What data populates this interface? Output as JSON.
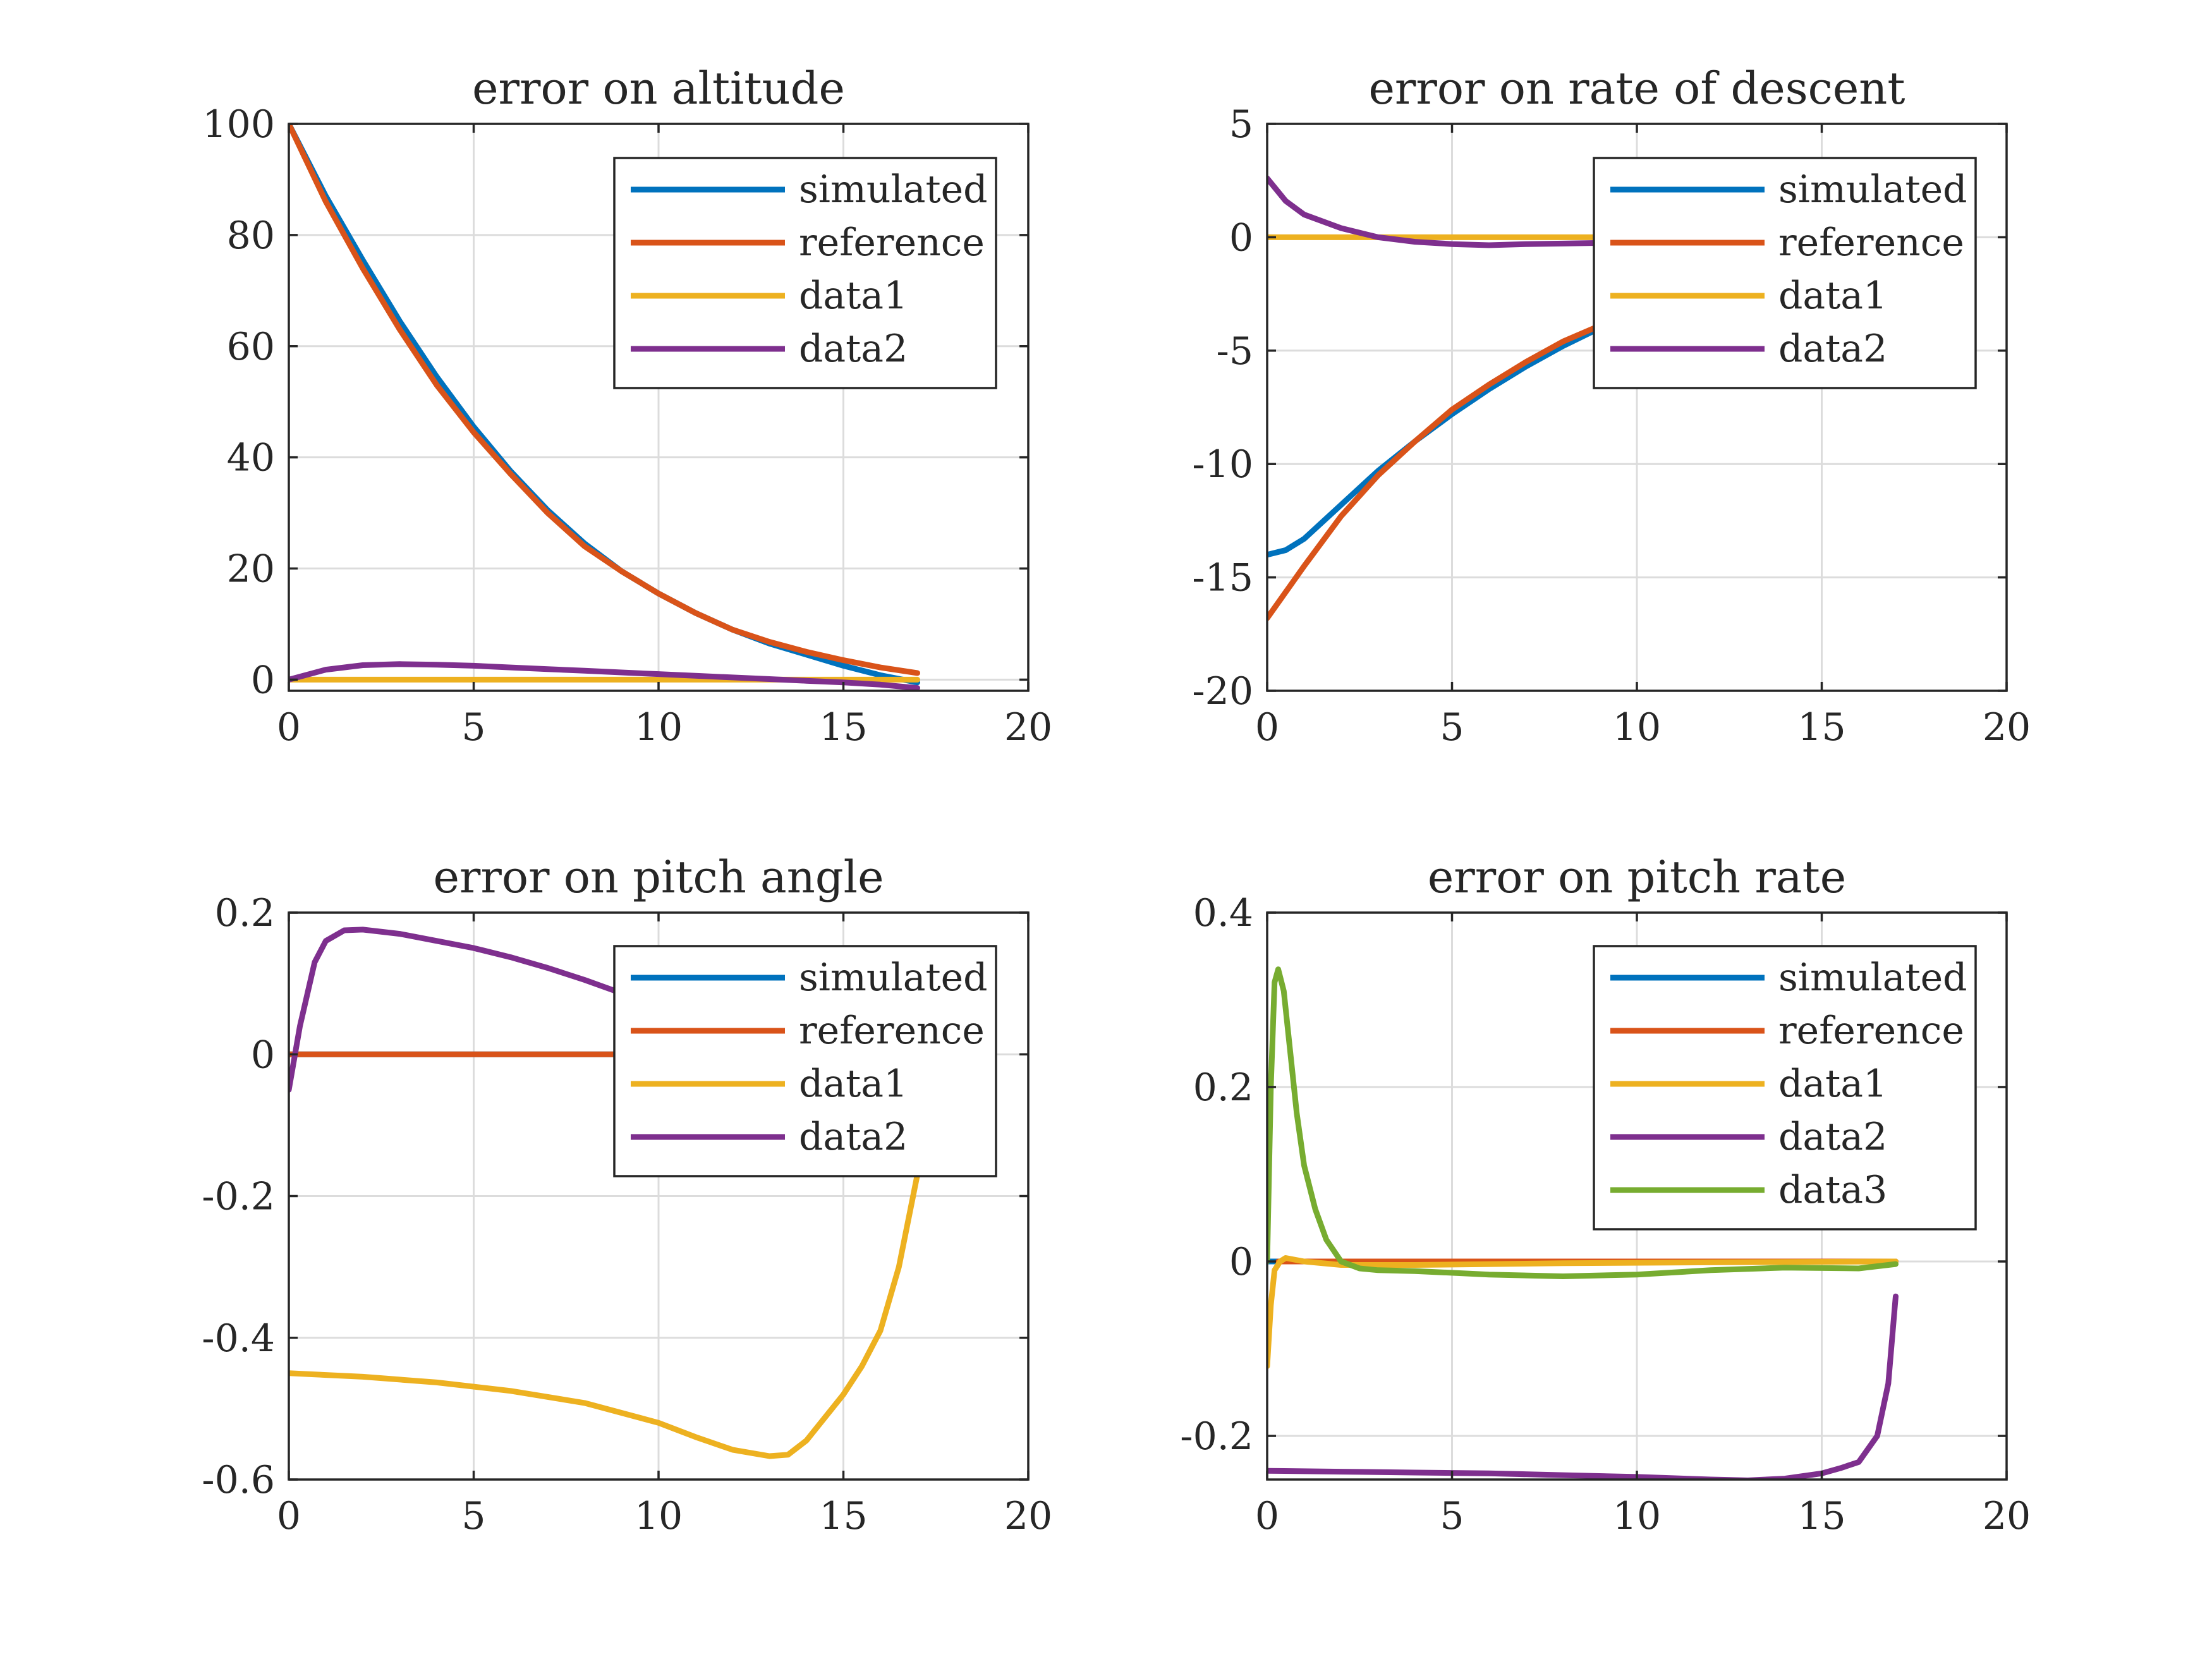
{
  "figure": {
    "background": "#ffffff"
  },
  "chart_data": [
    {
      "type": "line",
      "title": "error on altitude",
      "xlabel": "",
      "ylabel": "",
      "xlim": [
        0,
        20
      ],
      "ylim": [
        -2,
        100
      ],
      "xticks": [
        0,
        5,
        10,
        15,
        20
      ],
      "yticks": [
        0,
        20,
        40,
        60,
        80,
        100
      ],
      "xtick_labels": [
        "0",
        "5",
        "10",
        "15",
        "20"
      ],
      "ytick_labels": [
        "0",
        "20",
        "40",
        "60",
        "80",
        "100"
      ],
      "grid": true,
      "legend_position": "top-right",
      "series": [
        {
          "name": "simulated",
          "color": "#0072BD",
          "x": [
            0,
            1,
            2,
            3,
            4,
            5,
            6,
            7,
            8,
            9,
            10,
            11,
            12,
            13,
            14,
            15,
            16,
            17
          ],
          "y": [
            100,
            87,
            75.5,
            64.5,
            54.5,
            45.5,
            37.5,
            30.5,
            24.5,
            19.5,
            15.5,
            12,
            9,
            6.5,
            4.5,
            2.5,
            0.8,
            -0.5
          ]
        },
        {
          "name": "reference",
          "color": "#D95319",
          "x": [
            0,
            1,
            2,
            3,
            4,
            5,
            6,
            7,
            8,
            9,
            10,
            11,
            12,
            13,
            14,
            15,
            16,
            17
          ],
          "y": [
            100,
            86,
            74,
            63,
            53,
            44.5,
            37,
            30,
            24,
            19.5,
            15.5,
            12,
            9,
            6.8,
            5,
            3.5,
            2.2,
            1.2
          ]
        },
        {
          "name": "data1",
          "color": "#EDB120",
          "x": [
            0,
            17
          ],
          "y": [
            0,
            0
          ]
        },
        {
          "name": "data2",
          "color": "#7E2F8E",
          "x": [
            0,
            1,
            2,
            3,
            4,
            5,
            6,
            7,
            8,
            9,
            10,
            11,
            12,
            13,
            14,
            15,
            16,
            17
          ],
          "y": [
            0,
            1.8,
            2.6,
            2.8,
            2.7,
            2.5,
            2.2,
            1.9,
            1.6,
            1.3,
            1.0,
            0.7,
            0.4,
            0.1,
            -0.2,
            -0.5,
            -0.9,
            -1.5
          ]
        }
      ]
    },
    {
      "type": "line",
      "title": "error on rate of descent",
      "xlabel": "",
      "ylabel": "",
      "xlim": [
        0,
        20
      ],
      "ylim": [
        -20,
        5
      ],
      "xticks": [
        0,
        5,
        10,
        15,
        20
      ],
      "yticks": [
        -20,
        -15,
        -10,
        -5,
        0,
        5
      ],
      "xtick_labels": [
        "0",
        "5",
        "10",
        "15",
        "20"
      ],
      "ytick_labels": [
        "-20",
        "-15",
        "-10",
        "-5",
        "0",
        "5"
      ],
      "grid": true,
      "legend_position": "top-right",
      "series": [
        {
          "name": "simulated",
          "color": "#0072BD",
          "x": [
            0,
            0.5,
            1,
            2,
            3,
            4,
            5,
            6,
            7,
            8,
            9
          ],
          "y": [
            -14,
            -13.8,
            -13.3,
            -11.8,
            -10.3,
            -9.0,
            -7.8,
            -6.7,
            -5.7,
            -4.8,
            -4.0
          ]
        },
        {
          "name": "reference",
          "color": "#D95319",
          "x": [
            0,
            1,
            2,
            3,
            4,
            5,
            6,
            7,
            8,
            9
          ],
          "y": [
            -16.8,
            -14.5,
            -12.3,
            -10.5,
            -9.0,
            -7.6,
            -6.5,
            -5.5,
            -4.6,
            -3.9
          ]
        },
        {
          "name": "data1",
          "color": "#EDB120",
          "x": [
            0,
            9
          ],
          "y": [
            0,
            0
          ]
        },
        {
          "name": "data2",
          "color": "#7E2F8E",
          "x": [
            0,
            0.5,
            1,
            2,
            3,
            4,
            5,
            6,
            7,
            8,
            9
          ],
          "y": [
            2.6,
            1.6,
            1.0,
            0.4,
            0.0,
            -0.2,
            -0.3,
            -0.35,
            -0.3,
            -0.28,
            -0.25
          ]
        }
      ]
    },
    {
      "type": "line",
      "title": "error on pitch angle",
      "xlabel": "",
      "ylabel": "",
      "xlim": [
        0,
        20
      ],
      "ylim": [
        -0.6,
        0.2
      ],
      "xticks": [
        0,
        5,
        10,
        15,
        20
      ],
      "yticks": [
        -0.6,
        -0.4,
        -0.2,
        0,
        0.2
      ],
      "xtick_labels": [
        "0",
        "5",
        "10",
        "15",
        "20"
      ],
      "ytick_labels": [
        "-0.6",
        "-0.4",
        "-0.2",
        "0",
        "0.2"
      ],
      "grid": true,
      "legend_position": "top-right",
      "series": [
        {
          "name": "simulated",
          "color": "#0072BD",
          "x": [
            0,
            8.8
          ],
          "y": [
            0,
            0
          ]
        },
        {
          "name": "reference",
          "color": "#D95319",
          "x": [
            0,
            8.8
          ],
          "y": [
            0,
            0
          ]
        },
        {
          "name": "data1",
          "color": "#EDB120",
          "x": [
            0,
            2,
            4,
            6,
            8,
            10,
            11,
            12,
            13,
            13.5,
            14,
            15,
            15.5,
            16,
            16.5,
            17
          ],
          "y": [
            -0.45,
            -0.455,
            -0.463,
            -0.475,
            -0.492,
            -0.52,
            -0.54,
            -0.558,
            -0.567,
            -0.565,
            -0.545,
            -0.48,
            -0.44,
            -0.39,
            -0.3,
            -0.17
          ]
        },
        {
          "name": "data2",
          "color": "#7E2F8E",
          "x": [
            0,
            0.3,
            0.7,
            1,
            1.5,
            2,
            3,
            4,
            5,
            6,
            7,
            8,
            8.8
          ],
          "y": [
            -0.05,
            0.04,
            0.13,
            0.16,
            0.175,
            0.176,
            0.17,
            0.16,
            0.15,
            0.137,
            0.122,
            0.105,
            0.09
          ]
        }
      ]
    },
    {
      "type": "line",
      "title": "error on pitch rate",
      "xlabel": "",
      "ylabel": "",
      "xlim": [
        0,
        20
      ],
      "ylim": [
        -0.25,
        0.4
      ],
      "xticks": [
        0,
        5,
        10,
        15,
        20
      ],
      "yticks": [
        -0.2,
        0,
        0.2,
        0.4
      ],
      "xtick_labels": [
        "0",
        "5",
        "10",
        "15",
        "20"
      ],
      "ytick_labels": [
        "-0.2",
        "0",
        "0.2",
        "0.4"
      ],
      "grid": true,
      "legend_position": "top-right",
      "series": [
        {
          "name": "simulated",
          "color": "#0072BD",
          "x": [
            0,
            17
          ],
          "y": [
            0,
            0
          ]
        },
        {
          "name": "reference",
          "color": "#D95319",
          "x": [
            0.3,
            17
          ],
          "y": [
            0,
            0
          ]
        },
        {
          "name": "data1",
          "color": "#EDB120",
          "x": [
            0,
            0.1,
            0.2,
            0.35,
            0.5,
            1,
            2,
            4,
            8,
            12,
            17
          ],
          "y": [
            -0.12,
            -0.05,
            -0.01,
            0.0,
            0.004,
            0.0,
            -0.004,
            -0.004,
            -0.002,
            -0.001,
            0.0
          ]
        },
        {
          "name": "data2",
          "color": "#7E2F8E",
          "x": [
            0,
            2,
            4,
            6,
            8,
            10,
            12,
            13,
            14,
            15,
            15.5,
            16,
            16.5,
            16.8,
            17
          ],
          "y": [
            -0.24,
            -0.241,
            -0.242,
            -0.243,
            -0.245,
            -0.247,
            -0.25,
            -0.251,
            -0.249,
            -0.243,
            -0.237,
            -0.23,
            -0.2,
            -0.14,
            -0.04
          ]
        },
        {
          "name": "data3",
          "color": "#77AC30",
          "x": [
            0,
            0.1,
            0.2,
            0.3,
            0.45,
            0.6,
            0.8,
            1.0,
            1.3,
            1.6,
            2,
            2.5,
            3,
            4,
            6,
            8,
            10,
            12,
            14,
            16,
            17
          ],
          "y": [
            0.0,
            0.2,
            0.32,
            0.335,
            0.31,
            0.25,
            0.17,
            0.11,
            0.06,
            0.025,
            0.0,
            -0.008,
            -0.01,
            -0.011,
            -0.015,
            -0.017,
            -0.015,
            -0.01,
            -0.007,
            -0.008,
            -0.003
          ]
        }
      ]
    }
  ]
}
